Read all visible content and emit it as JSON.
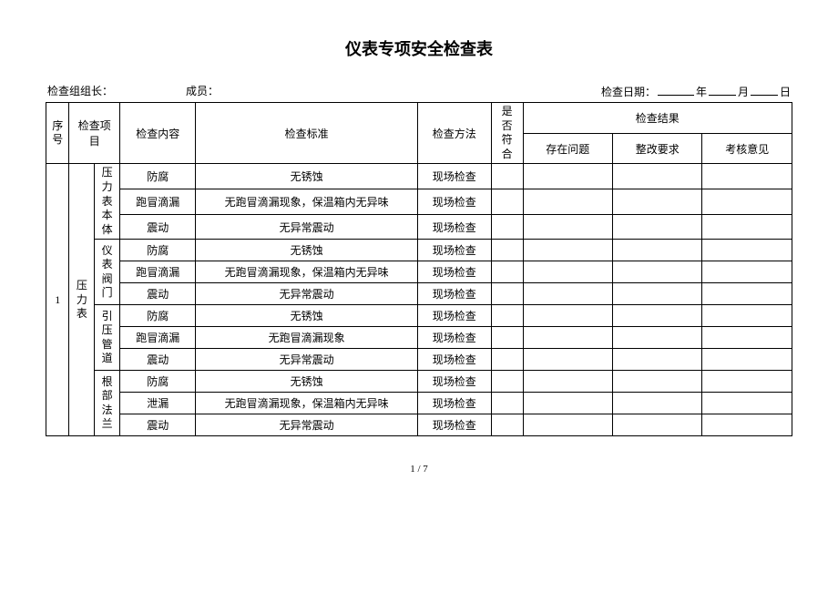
{
  "title": "仪表专项安全检查表",
  "header": {
    "leader_label": "检查组组长：",
    "member_label": "成员：",
    "date_label": "检查日期：",
    "year": "年",
    "month": "月",
    "day": "日"
  },
  "columns": {
    "seq": "序号",
    "item": "检查项目",
    "content": "检查内容",
    "standard": "检查标准",
    "method": "检查方法",
    "compliant": "是否符合",
    "result_group": "检查结果",
    "problem": "存在问题",
    "rectify": "整改要求",
    "opinion": "考核意见"
  },
  "main": {
    "seq": "1",
    "item": "压力表",
    "groups": [
      {
        "sub": "压力表本体",
        "rows": [
          {
            "content": "防腐",
            "standard": "无锈蚀",
            "method": "现场检查"
          },
          {
            "content": "跑冒滴漏",
            "standard": "无跑冒滴漏现象，保温箱内无异味",
            "method": "现场检查"
          },
          {
            "content": "震动",
            "standard": "无异常震动",
            "method": "现场检查"
          }
        ]
      },
      {
        "sub": "仪表阀门",
        "rows": [
          {
            "content": "防腐",
            "standard": "无锈蚀",
            "method": "现场检查"
          },
          {
            "content": "跑冒滴漏",
            "standard": "无跑冒滴漏现象，保温箱内无异味",
            "method": "现场检查"
          },
          {
            "content": "震动",
            "standard": "无异常震动",
            "method": "现场检查"
          }
        ]
      },
      {
        "sub": "引压管道",
        "rows": [
          {
            "content": "防腐",
            "standard": "无锈蚀",
            "method": "现场检查"
          },
          {
            "content": "跑冒滴漏",
            "standard": "无跑冒滴漏现象",
            "method": "现场检查"
          },
          {
            "content": "震动",
            "standard": "无异常震动",
            "method": "现场检查"
          }
        ]
      },
      {
        "sub": "根部法兰",
        "rows": [
          {
            "content": "防腐",
            "standard": "无锈蚀",
            "method": "现场检查"
          },
          {
            "content": "泄漏",
            "standard": "无跑冒滴漏现象，保温箱内无异味",
            "method": "现场检查"
          },
          {
            "content": "震动",
            "standard": "无异常震动",
            "method": "现场检查"
          }
        ]
      }
    ]
  },
  "footer": "1 / 7"
}
